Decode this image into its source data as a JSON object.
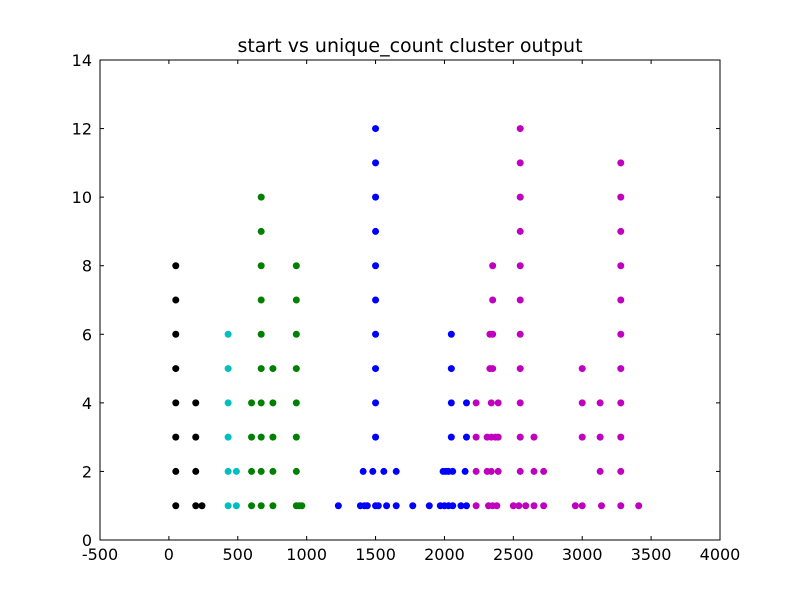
{
  "chart_data": {
    "type": "scatter",
    "title": "start vs unique_count cluster output",
    "xlabel": "",
    "ylabel": "",
    "xlim": [
      -500,
      4000
    ],
    "ylim": [
      0,
      14
    ],
    "xticks": [
      -500,
      0,
      500,
      1000,
      1500,
      2000,
      2500,
      3000,
      3500,
      4000
    ],
    "yticks": [
      0,
      2,
      4,
      6,
      8,
      10,
      12,
      14
    ],
    "grid": false,
    "legend": "none",
    "series": [
      {
        "color": "#000000",
        "points": [
          [
            50,
            1
          ],
          [
            50,
            2
          ],
          [
            50,
            3
          ],
          [
            50,
            4
          ],
          [
            50,
            5
          ],
          [
            50,
            6
          ],
          [
            50,
            7
          ],
          [
            50,
            8
          ],
          [
            195,
            1
          ],
          [
            195,
            2
          ],
          [
            195,
            3
          ],
          [
            195,
            4
          ],
          [
            240,
            1
          ]
        ]
      },
      {
        "color": "#00bfbf",
        "points": [
          [
            430,
            1
          ],
          [
            430,
            2
          ],
          [
            430,
            3
          ],
          [
            430,
            4
          ],
          [
            430,
            5
          ],
          [
            430,
            6
          ],
          [
            490,
            1
          ],
          [
            490,
            2
          ]
        ]
      },
      {
        "color": "#008000",
        "points": [
          [
            600,
            1
          ],
          [
            600,
            2
          ],
          [
            600,
            3
          ],
          [
            600,
            4
          ],
          [
            670,
            1
          ],
          [
            670,
            2
          ],
          [
            670,
            3
          ],
          [
            670,
            4
          ],
          [
            670,
            5
          ],
          [
            670,
            6
          ],
          [
            670,
            7
          ],
          [
            670,
            8
          ],
          [
            670,
            9
          ],
          [
            670,
            10
          ],
          [
            755,
            1
          ],
          [
            755,
            2
          ],
          [
            755,
            3
          ],
          [
            755,
            4
          ],
          [
            755,
            5
          ],
          [
            925,
            1
          ],
          [
            925,
            2
          ],
          [
            925,
            3
          ],
          [
            925,
            4
          ],
          [
            925,
            5
          ],
          [
            925,
            6
          ],
          [
            925,
            7
          ],
          [
            925,
            8
          ],
          [
            945,
            1
          ],
          [
            965,
            1
          ]
        ]
      },
      {
        "color": "#0000ff",
        "points": [
          [
            1230,
            1
          ],
          [
            1390,
            1
          ],
          [
            1420,
            1
          ],
          [
            1440,
            1
          ],
          [
            1500,
            1
          ],
          [
            1520,
            1
          ],
          [
            1580,
            1
          ],
          [
            1650,
            1
          ],
          [
            1770,
            1
          ],
          [
            1890,
            1
          ],
          [
            1970,
            1
          ],
          [
            2000,
            1
          ],
          [
            2030,
            1
          ],
          [
            2060,
            1
          ],
          [
            2120,
            1
          ],
          [
            2160,
            1
          ],
          [
            1410,
            2
          ],
          [
            1480,
            2
          ],
          [
            1560,
            2
          ],
          [
            1650,
            2
          ],
          [
            1990,
            2
          ],
          [
            2010,
            2
          ],
          [
            2030,
            2
          ],
          [
            2060,
            2
          ],
          [
            2150,
            2
          ],
          [
            1500,
            3
          ],
          [
            1500,
            4
          ],
          [
            1500,
            5
          ],
          [
            1500,
            6
          ],
          [
            1500,
            7
          ],
          [
            1500,
            8
          ],
          [
            1500,
            9
          ],
          [
            1500,
            10
          ],
          [
            1500,
            11
          ],
          [
            1500,
            12
          ],
          [
            2050,
            3
          ],
          [
            2050,
            4
          ],
          [
            2050,
            5
          ],
          [
            2050,
            6
          ],
          [
            2160,
            3
          ],
          [
            2160,
            4
          ]
        ]
      },
      {
        "color": "#bf00bf",
        "points": [
          [
            2230,
            1
          ],
          [
            2320,
            1
          ],
          [
            2350,
            1
          ],
          [
            2380,
            1
          ],
          [
            2500,
            1
          ],
          [
            2540,
            1
          ],
          [
            2590,
            1
          ],
          [
            2650,
            1
          ],
          [
            2720,
            1
          ],
          [
            2950,
            1
          ],
          [
            3000,
            1
          ],
          [
            3140,
            1
          ],
          [
            3280,
            1
          ],
          [
            3410,
            1
          ],
          [
            2230,
            2
          ],
          [
            2310,
            2
          ],
          [
            2340,
            2
          ],
          [
            2390,
            2
          ],
          [
            2550,
            2
          ],
          [
            2650,
            2
          ],
          [
            2720,
            2
          ],
          [
            3130,
            2
          ],
          [
            3280,
            2
          ],
          [
            2230,
            3
          ],
          [
            2310,
            3
          ],
          [
            2340,
            3
          ],
          [
            2370,
            3
          ],
          [
            2390,
            3
          ],
          [
            2550,
            3
          ],
          [
            2650,
            3
          ],
          [
            3000,
            3
          ],
          [
            3130,
            3
          ],
          [
            3280,
            3
          ],
          [
            2230,
            4
          ],
          [
            2340,
            4
          ],
          [
            2390,
            4
          ],
          [
            2550,
            4
          ],
          [
            3000,
            4
          ],
          [
            3130,
            4
          ],
          [
            3280,
            4
          ],
          [
            2330,
            5
          ],
          [
            2350,
            5
          ],
          [
            2550,
            5
          ],
          [
            3000,
            5
          ],
          [
            3280,
            5
          ],
          [
            2330,
            6
          ],
          [
            2350,
            6
          ],
          [
            2550,
            6
          ],
          [
            3280,
            6
          ],
          [
            2350,
            7
          ],
          [
            2550,
            7
          ],
          [
            3280,
            7
          ],
          [
            2350,
            8
          ],
          [
            2550,
            8
          ],
          [
            3280,
            8
          ],
          [
            2550,
            9
          ],
          [
            3280,
            9
          ],
          [
            2550,
            10
          ],
          [
            3280,
            10
          ],
          [
            2550,
            11
          ],
          [
            3280,
            11
          ],
          [
            2550,
            12
          ]
        ]
      }
    ]
  }
}
